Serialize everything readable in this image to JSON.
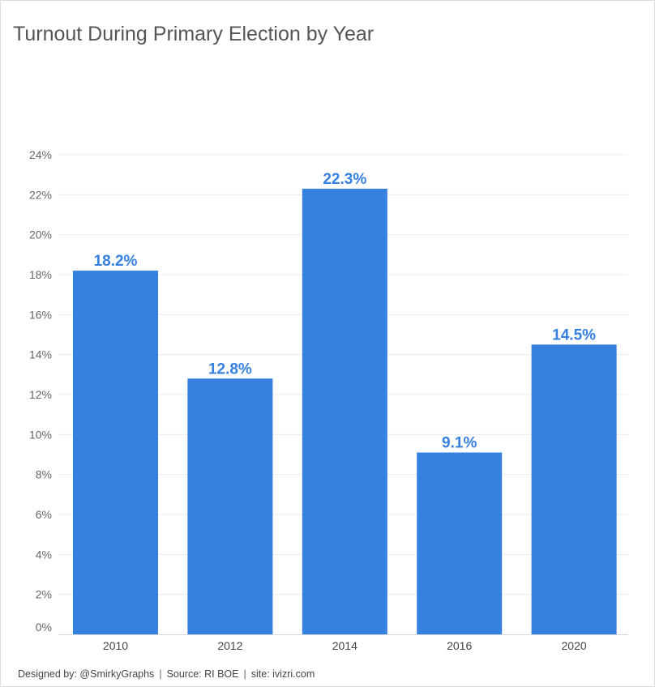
{
  "title": "Turnout During Primary Election by Year",
  "chart_data": {
    "type": "bar",
    "categories": [
      "2010",
      "2012",
      "2014",
      "2016",
      "2020"
    ],
    "values": [
      18.2,
      12.8,
      22.3,
      9.1,
      14.5
    ],
    "value_labels": [
      "18.2%",
      "12.8%",
      "22.3%",
      "9.1%",
      "14.5%"
    ],
    "y_ticks": [
      "0%",
      "2%",
      "4%",
      "6%",
      "8%",
      "10%",
      "12%",
      "14%",
      "16%",
      "18%",
      "20%",
      "22%",
      "24%"
    ],
    "ylim": [
      0,
      24
    ],
    "grid": true,
    "bar_color": "#3680e0",
    "label_color": "#3680e0",
    "xlabel": "",
    "ylabel": ""
  },
  "footer": {
    "designed_by": "Designed by: @SmirkyGraphs",
    "source": "Source: RI BOE",
    "site": "site: ivizri.com",
    "separator": "|"
  }
}
